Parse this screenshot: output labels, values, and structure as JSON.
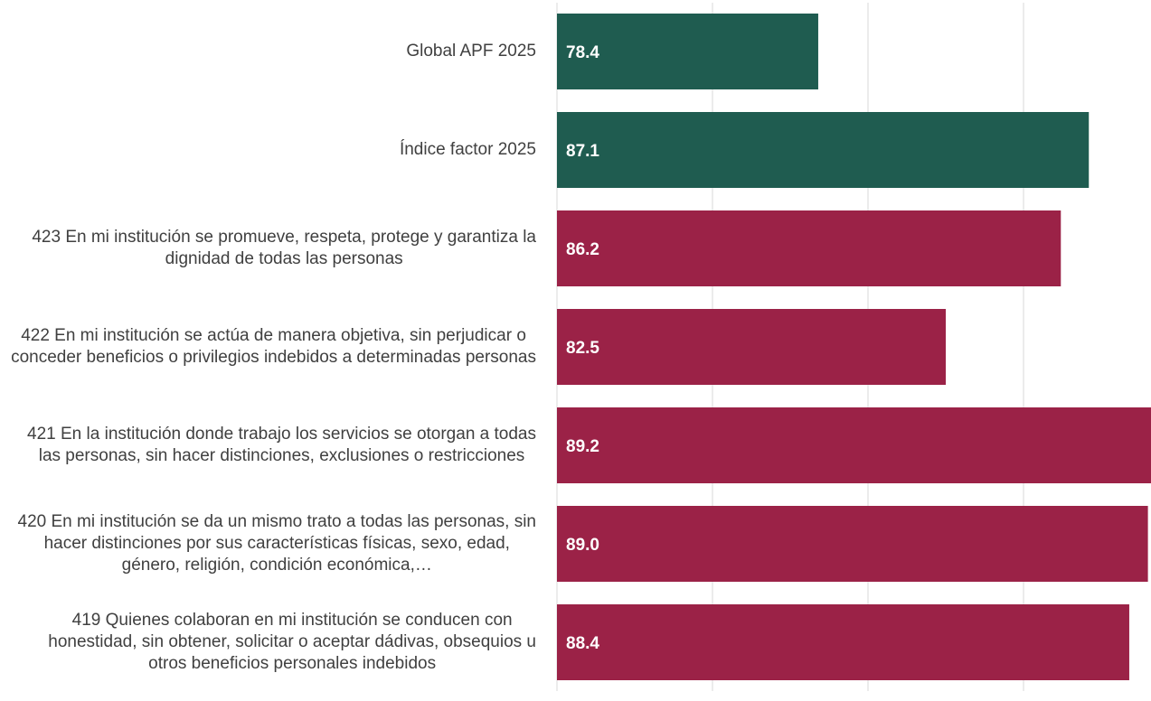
{
  "chart_data": {
    "type": "barh",
    "categories": [
      "Global APF 2025",
      "Índice factor 2025",
      "423 En mi institución se promueve, respeta, protege y garantiza la dignidad de todas las personas",
      "422 En mi institución se actúa de manera objetiva, sin perjudicar o conceder beneficios o privilegios indebidos a determinadas personas",
      "421 En la institución donde trabajo los servicios se otorgan a todas las personas, sin hacer distinciones, exclusiones o restricciones",
      "420 En mi institución se da un mismo trato a todas las personas, sin hacer distinciones por sus características físicas, sexo, edad, género, religión, condición económica,…",
      "419 Quienes colaboran en mi institución se conducen con honestidad, sin obtener, solicitar o aceptar dádivas, obsequios u otros beneficios personales indebidos"
    ],
    "values": [
      78.4,
      87.1,
      86.2,
      82.5,
      89.2,
      89.0,
      88.4
    ],
    "value_labels": [
      "78.4",
      "87.1",
      "86.2",
      "82.5",
      "89.2",
      "89.0",
      "88.4"
    ],
    "colors": [
      "#1f5c50",
      "#1f5c50",
      "#9b2247",
      "#9b2247",
      "#9b2247",
      "#9b2247",
      "#9b2247"
    ],
    "xlim": [
      70,
      90
    ],
    "xticks": [
      70,
      75,
      80,
      85
    ],
    "grid": true
  }
}
